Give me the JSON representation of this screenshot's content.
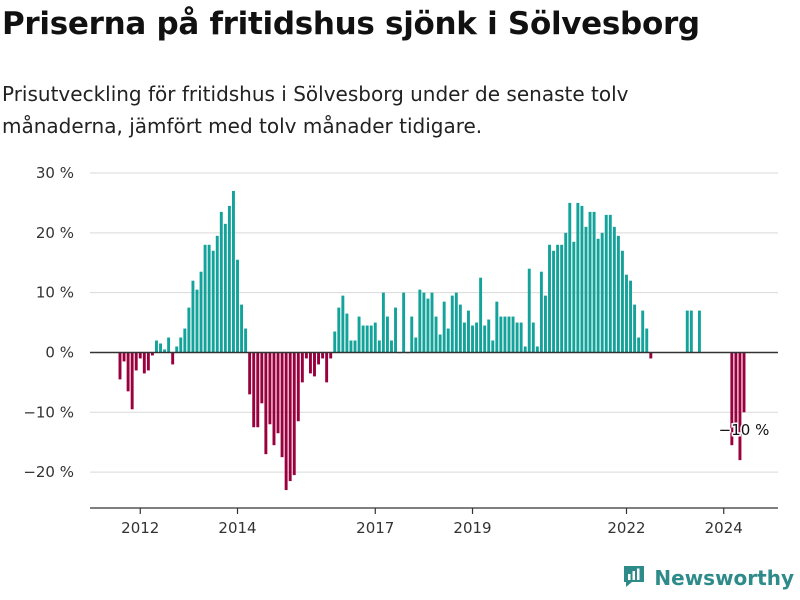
{
  "title": "Priserna på fritidshus sjönk i Sölvesborg",
  "subtitle": "Prisutveckling för fritidshus i Sölvesborg under de senaste tolv månaderna, jämfört med tolv månader tidigare.",
  "brand": {
    "name": "Newsworthy",
    "icon": "newsworthy-logo-icon"
  },
  "colors": {
    "positive": "#14a39a",
    "negative": "#99003d",
    "grid": "#d9d9d9",
    "zero_line": "#333333"
  },
  "chart_data": {
    "type": "bar",
    "x": [
      "2011-12",
      "2012-01",
      "2012-02",
      "2012-03",
      "2012-04",
      "2012-05",
      "2012-06",
      "2012-07",
      "2012-08",
      "2012-09",
      "2012-10",
      "2012-11",
      "2012-12",
      "2013-01",
      "2013-02",
      "2013-03",
      "2013-04",
      "2013-05",
      "2013-06",
      "2013-07",
      "2013-08",
      "2013-09",
      "2013-10",
      "2013-11",
      "2013-12",
      "2014-01",
      "2014-02",
      "2014-03",
      "2014-04",
      "2014-05",
      "2014-06",
      "2014-07",
      "2014-08",
      "2014-09",
      "2014-10",
      "2014-11",
      "2014-12",
      "2015-01",
      "2015-02",
      "2015-03",
      "2015-04",
      "2015-05",
      "2015-06",
      "2015-07",
      "2015-08",
      "2015-09",
      "2015-10",
      "2015-11",
      "2015-12",
      "2016-01",
      "2016-02",
      "2016-03",
      "2016-04",
      "2016-05",
      "2016-06",
      "2016-07",
      "2016-08",
      "2016-09",
      "2016-10",
      "2016-11",
      "2016-12",
      "2017-01",
      "2017-02",
      "2017-03",
      "2017-04",
      "2017-05",
      "2017-06",
      "2017-07",
      "2017-08",
      "2017-09",
      "2017-10",
      "2017-11",
      "2017-12",
      "2018-01",
      "2018-02",
      "2018-03",
      "2018-04",
      "2018-05",
      "2018-06",
      "2018-07",
      "2018-08",
      "2018-09",
      "2018-10",
      "2018-11",
      "2018-12",
      "2019-01",
      "2019-02",
      "2019-03",
      "2019-04",
      "2019-05",
      "2019-06",
      "2019-07",
      "2019-08",
      "2019-09",
      "2019-10",
      "2019-11",
      "2019-12",
      "2020-01",
      "2020-02",
      "2020-03",
      "2020-04",
      "2020-05",
      "2020-06",
      "2020-07",
      "2020-08",
      "2020-09",
      "2020-10",
      "2020-11",
      "2020-12",
      "2021-01",
      "2021-02",
      "2021-03",
      "2021-04",
      "2021-05",
      "2021-06",
      "2021-07",
      "2021-08",
      "2021-09",
      "2021-10",
      "2021-11",
      "2021-12",
      "2022-01",
      "2022-02",
      "2022-03",
      "2022-04",
      "2022-05",
      "2022-06",
      "2022-07",
      "2022-08",
      "2022-09",
      "2022-10",
      "2022-11",
      "2022-12",
      "2023-01",
      "2023-02",
      "2023-03",
      "2023-04",
      "2023-05",
      "2023-06",
      "2023-07",
      "2023-08",
      "2023-09",
      "2023-10",
      "2023-11",
      "2023-12",
      "2024-01",
      "2024-02",
      "2024-03",
      "2024-04",
      "2024-05",
      "2024-06",
      "2024-07",
      "2024-08",
      "2024-09",
      "2024-10"
    ],
    "values": [
      -4.5,
      -1.5,
      -6.5,
      -9.5,
      -3,
      -1,
      -3.5,
      -3,
      -0.5,
      2,
      1.5,
      0.5,
      2.5,
      -2,
      1,
      2.5,
      4,
      7.5,
      12,
      10.5,
      13.5,
      18,
      18,
      17,
      19.5,
      23.5,
      21.5,
      24.5,
      27,
      15.5,
      8,
      4,
      -7,
      -12.5,
      -12.5,
      -8.5,
      -17,
      -12,
      -15.5,
      -13.5,
      -17.5,
      -23,
      -21.5,
      -20.5,
      -11.5,
      -5,
      -1,
      -3.5,
      -4,
      -2,
      -1,
      -5,
      -1,
      3.5,
      7.5,
      9.5,
      6.5,
      2,
      2,
      6,
      4.5,
      4.5,
      4.5,
      5,
      2,
      10,
      6,
      2,
      7.5,
      0,
      10,
      0,
      6,
      2.5,
      10.5,
      10,
      9,
      10,
      6,
      3,
      8.5,
      4,
      9.5,
      10,
      8,
      5,
      7,
      4.5,
      5,
      12.5,
      4.5,
      5.5,
      2,
      8.5,
      6,
      6,
      6,
      6,
      5,
      5,
      1,
      14,
      5,
      1,
      13.5,
      9.5,
      18,
      17,
      18,
      18,
      20,
      25,
      18.5,
      25,
      24.5,
      21,
      23.5,
      23.5,
      19,
      20,
      23,
      23,
      21,
      19.5,
      17,
      13,
      12,
      8,
      2.5,
      7,
      4,
      -1,
      null,
      null,
      null,
      null,
      null,
      null,
      null,
      null,
      7,
      7,
      null,
      7,
      null,
      null,
      null,
      null,
      null,
      null,
      null,
      -15.5,
      -12,
      -18,
      -10
    ],
    "xlim": [
      "2011-12",
      "2024-10"
    ],
    "ylim": [
      -26,
      30
    ],
    "yticks": [
      -20,
      -10,
      0,
      10,
      20,
      30
    ],
    "ytick_labels": [
      "−20 %",
      "−10 %",
      "0 %",
      "10 %",
      "20 %",
      "30 %"
    ],
    "xticks": [
      "2012",
      "2014",
      "2017",
      "2019",
      "2022",
      "2024"
    ],
    "xtick_positions": [
      "2012-05",
      "2014-05",
      "2017-03",
      "2019-03",
      "2022-05",
      "2024-05"
    ],
    "grid": true,
    "annotation": {
      "text": "−10 %",
      "x": "2024-10"
    }
  }
}
